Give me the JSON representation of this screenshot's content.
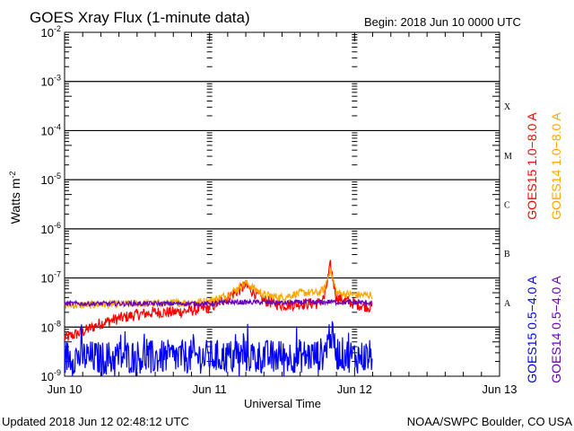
{
  "chart_data": {
    "type": "line",
    "title": "GOES Xray Flux (1-minute data)",
    "begin_label": "Begin:  2018 Jun 10 0000 UTC",
    "xlabel": "Universal Time",
    "ylabel": "Watts m",
    "ylabel_sup": "-2",
    "y_scale": "log",
    "ylim": [
      1e-09,
      0.01
    ],
    "xlim_hours": [
      0,
      72
    ],
    "x_tick_labels": [
      "Jun 10",
      "Jun 11",
      "Jun 12",
      "Jun 13"
    ],
    "y_tick_labels": [
      {
        "base": "10",
        "exp": "-9"
      },
      {
        "base": "10",
        "exp": "-8"
      },
      {
        "base": "10",
        "exp": "-7"
      },
      {
        "base": "10",
        "exp": "-6"
      },
      {
        "base": "10",
        "exp": "-5"
      },
      {
        "base": "10",
        "exp": "-4"
      },
      {
        "base": "10",
        "exp": "-3"
      },
      {
        "base": "10",
        "exp": "-2"
      }
    ],
    "flare_classes": [
      "A",
      "B",
      "C",
      "M",
      "X"
    ],
    "grid": "horizontal lines at each decade from 1e-8 to 1e-3",
    "x_hours": [
      0,
      3,
      6,
      9,
      12,
      15,
      18,
      21,
      24,
      27,
      30,
      33,
      36,
      39,
      42,
      43,
      44,
      45,
      48,
      51
    ],
    "series": [
      {
        "name": "GOES15 1.0-8.0 A",
        "label": "GOES15 1.0−8.0 A",
        "color": "#ff0000",
        "values": [
          6e-09,
          8e-09,
          1.2e-08,
          1.5e-08,
          1.8e-08,
          2e-08,
          2e-08,
          2.2e-08,
          2.5e-08,
          4e-08,
          7e-08,
          3.5e-08,
          2.8e-08,
          3e-08,
          3e-08,
          4e-08,
          1.8e-07,
          4e-08,
          3e-08,
          2.5e-08
        ]
      },
      {
        "name": "GOES14 1.0-8.0 A",
        "label": "GOES14 1.0−8.0 A",
        "color": "#ffa500",
        "values": [
          2.8e-08,
          2.8e-08,
          2.9e-08,
          2.9e-08,
          3e-08,
          3e-08,
          3.1e-08,
          3.2e-08,
          3.4e-08,
          4.5e-08,
          8e-08,
          4.5e-08,
          4e-08,
          5e-08,
          5e-08,
          6e-08,
          1.5e-07,
          5e-08,
          4.5e-08,
          4.5e-08
        ]
      },
      {
        "name": "GOES15 0.5-4.0 A",
        "label": "GOES15 0.5−4.0 A",
        "color": "#0000ff",
        "values": [
          2.5e-09,
          2.5e-09,
          2.3e-09,
          2.5e-09,
          2.5e-09,
          2.4e-09,
          2.5e-09,
          2.5e-09,
          2.5e-09,
          2.5e-09,
          2.6e-09,
          2.5e-09,
          2.5e-09,
          2.6e-09,
          2.6e-09,
          3e-09,
          8e-09,
          3e-09,
          2.5e-09,
          2.5e-09
        ]
      },
      {
        "name": "GOES14 0.5-4.0 A",
        "label": "GOES14 0.5−4.0 A",
        "color": "#6600bb",
        "values": [
          3e-08,
          3e-08,
          3e-08,
          3e-08,
          3e-08,
          3e-08,
          3e-08,
          3e-08,
          3e-08,
          3.2e-08,
          3.2e-08,
          3.2e-08,
          3.1e-08,
          3.2e-08,
          3.2e-08,
          3.2e-08,
          3.3e-08,
          3.2e-08,
          3.2e-08,
          3.1e-08
        ]
      }
    ]
  },
  "footer": {
    "updated": "Updated 2018 Jun 12 02:48:12 UTC",
    "credit": "NOAA/SWPC Boulder, CO USA"
  }
}
